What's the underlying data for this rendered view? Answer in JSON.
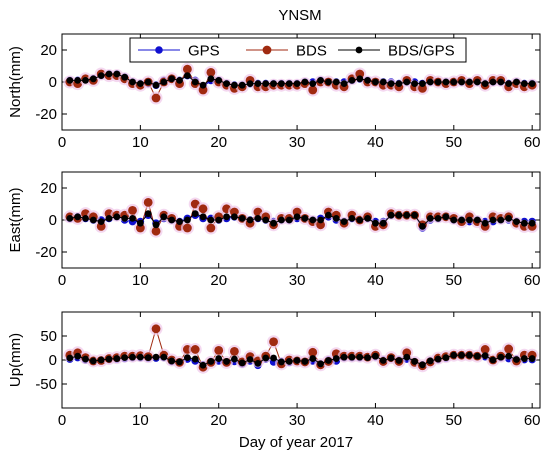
{
  "figure": {
    "title": "YNSM",
    "xlabel": "Day of year 2017"
  },
  "legend": {
    "placement": "top-center",
    "entries": [
      {
        "label": "GPS",
        "color": "#1010d0"
      },
      {
        "label": "BDS",
        "color": "#a02a10"
      },
      {
        "label": "BDS/GPS",
        "color": "#000000"
      }
    ]
  },
  "chart_data": [
    {
      "type": "line",
      "ylabel": "North(mm)",
      "xlim": [
        0,
        61
      ],
      "ylim": [
        -30,
        30
      ],
      "xticks": [
        0,
        10,
        20,
        30,
        40,
        50,
        60
      ],
      "yticks": [
        -20,
        0,
        20
      ],
      "x": [
        1,
        2,
        3,
        4,
        5,
        6,
        7,
        8,
        9,
        10,
        11,
        12,
        13,
        14,
        15,
        16,
        17,
        18,
        19,
        20,
        21,
        22,
        23,
        24,
        25,
        26,
        27,
        28,
        29,
        30,
        31,
        32,
        33,
        34,
        35,
        36,
        37,
        38,
        39,
        40,
        41,
        42,
        43,
        44,
        45,
        46,
        47,
        48,
        49,
        50,
        51,
        52,
        53,
        54,
        55,
        56,
        57,
        58,
        59,
        60
      ],
      "series": [
        {
          "name": "GPS",
          "color": "#1010d0",
          "values": [
            1,
            1,
            2,
            2,
            4,
            5,
            5,
            3,
            0,
            -1,
            -1,
            -2,
            1,
            2,
            1,
            4,
            1,
            -3,
            1,
            1,
            -1,
            -2,
            -2,
            -1,
            -1,
            -1,
            -1,
            -1,
            -1,
            -1,
            0,
            0,
            1,
            0,
            0,
            0,
            1,
            2,
            1,
            0,
            0,
            0,
            -1,
            0,
            0,
            -1,
            0,
            0,
            0,
            0,
            0,
            0,
            0,
            -1,
            0,
            0,
            -1,
            0,
            -1,
            -1
          ]
        },
        {
          "name": "BDS",
          "color": "#a02a10",
          "values": [
            0,
            -1,
            2,
            1,
            5,
            4,
            4,
            2,
            -1,
            -2,
            0,
            -10,
            0,
            2,
            -1,
            8,
            -1,
            -5,
            6,
            0,
            -2,
            -4,
            -3,
            1,
            -3,
            -3,
            -2,
            -2,
            -2,
            -2,
            -1,
            -5,
            0,
            0,
            -2,
            -3,
            2,
            5,
            0,
            0,
            -2,
            -2,
            -3,
            1,
            -3,
            -4,
            1,
            0,
            -1,
            0,
            1,
            -1,
            1,
            -2,
            1,
            1,
            -3,
            -1,
            -3,
            -2
          ]
        },
        {
          "name": "BDS/GPS",
          "color": "#000000",
          "values": [
            1,
            1,
            1,
            2,
            4,
            5,
            5,
            3,
            0,
            -1,
            0,
            -2,
            0,
            2,
            1,
            4,
            0,
            -2,
            2,
            1,
            -1,
            -2,
            -2,
            -1,
            -1,
            -1,
            -1,
            -1,
            -1,
            -1,
            0,
            -1,
            1,
            0,
            0,
            -1,
            1,
            2,
            1,
            0,
            0,
            -1,
            -1,
            0,
            -1,
            -1,
            0,
            0,
            0,
            0,
            0,
            0,
            0,
            -1,
            0,
            0,
            -1,
            0,
            -1,
            -1
          ]
        }
      ]
    },
    {
      "type": "line",
      "ylabel": "East(mm)",
      "xlim": [
        0,
        61
      ],
      "ylim": [
        -30,
        30
      ],
      "xticks": [
        0,
        10,
        20,
        30,
        40,
        50,
        60
      ],
      "yticks": [
        -20,
        0,
        20
      ],
      "x": [
        1,
        2,
        3,
        4,
        5,
        6,
        7,
        8,
        9,
        10,
        11,
        12,
        13,
        14,
        15,
        16,
        17,
        18,
        19,
        20,
        21,
        22,
        23,
        24,
        25,
        26,
        27,
        28,
        29,
        30,
        31,
        32,
        33,
        34,
        35,
        36,
        37,
        38,
        39,
        40,
        41,
        42,
        43,
        44,
        45,
        46,
        47,
        48,
        49,
        50,
        51,
        52,
        53,
        54,
        55,
        56,
        57,
        58,
        59,
        60
      ],
      "series": [
        {
          "name": "GPS",
          "color": "#1010d0",
          "values": [
            1,
            2,
            1,
            0,
            0,
            1,
            2,
            0,
            -1,
            -1,
            3,
            -2,
            1,
            0,
            -1,
            1,
            3,
            1,
            1,
            0,
            1,
            2,
            1,
            0,
            1,
            0,
            -1,
            0,
            0,
            1,
            1,
            0,
            1,
            2,
            0,
            -1,
            1,
            0,
            1,
            -1,
            -1,
            3,
            3,
            3,
            3,
            -5,
            0,
            1,
            2,
            0,
            0,
            -1,
            0,
            -1,
            -1,
            0,
            0,
            -1,
            -1,
            -1
          ]
        },
        {
          "name": "BDS",
          "color": "#a02a10",
          "values": [
            2,
            1,
            4,
            2,
            -4,
            4,
            3,
            3,
            6,
            -5,
            11,
            -7,
            3,
            1,
            -4,
            -5,
            10,
            7,
            -5,
            2,
            7,
            5,
            1,
            -2,
            5,
            2,
            -3,
            1,
            1,
            5,
            1,
            -1,
            -3,
            5,
            3,
            -2,
            3,
            0,
            2,
            -4,
            -3,
            4,
            3,
            3,
            3,
            -3,
            2,
            2,
            2,
            1,
            -1,
            2,
            -1,
            -4,
            2,
            1,
            2,
            -2,
            -4,
            -4
          ]
        },
        {
          "name": "BDS/GPS",
          "color": "#000000",
          "values": [
            1,
            2,
            1,
            0,
            -1,
            1,
            2,
            1,
            1,
            -2,
            4,
            -3,
            2,
            0,
            -1,
            0,
            4,
            2,
            0,
            0,
            2,
            2,
            1,
            0,
            1,
            0,
            -2,
            0,
            0,
            2,
            1,
            0,
            0,
            3,
            1,
            -1,
            1,
            0,
            1,
            -2,
            -2,
            3,
            3,
            3,
            3,
            -4,
            1,
            1,
            2,
            0,
            0,
            0,
            0,
            -2,
            0,
            0,
            1,
            -1,
            -2,
            -2
          ]
        }
      ]
    },
    {
      "type": "line",
      "ylabel": "Up(mm)",
      "xlim": [
        0,
        61
      ],
      "ylim": [
        -100,
        100
      ],
      "xticks": [
        0,
        10,
        20,
        30,
        40,
        50,
        60
      ],
      "yticks": [
        -50,
        0,
        50
      ],
      "x": [
        1,
        2,
        3,
        4,
        5,
        6,
        7,
        8,
        9,
        10,
        11,
        12,
        13,
        14,
        15,
        16,
        17,
        18,
        19,
        20,
        21,
        22,
        23,
        24,
        25,
        26,
        27,
        28,
        29,
        30,
        31,
        32,
        33,
        34,
        35,
        36,
        37,
        38,
        39,
        40,
        41,
        42,
        43,
        44,
        45,
        46,
        47,
        48,
        49,
        50,
        51,
        52,
        53,
        54,
        55,
        56,
        57,
        58,
        59,
        60
      ],
      "series": [
        {
          "name": "GPS",
          "color": "#1010d0",
          "values": [
            2,
            5,
            0,
            -2,
            0,
            1,
            2,
            3,
            5,
            5,
            4,
            4,
            5,
            -3,
            -4,
            2,
            -2,
            -10,
            -3,
            -2,
            -5,
            -3,
            -8,
            -2,
            -11,
            2,
            -4,
            -3,
            -5,
            -1,
            -3,
            -2,
            -8,
            0,
            -2,
            5,
            5,
            5,
            5,
            7,
            0,
            3,
            0,
            2,
            -3,
            -10,
            -2,
            1,
            4,
            9,
            10,
            9,
            8,
            7,
            0,
            5,
            3,
            2,
            1,
            1
          ]
        },
        {
          "name": "BDS",
          "color": "#a02a10",
          "values": [
            10,
            15,
            5,
            -2,
            -1,
            3,
            5,
            8,
            8,
            9,
            7,
            65,
            10,
            0,
            -5,
            22,
            22,
            -15,
            -5,
            20,
            -5,
            18,
            -4,
            7,
            -2,
            8,
            38,
            -8,
            0,
            -2,
            -4,
            16,
            -10,
            -3,
            13,
            8,
            8,
            8,
            6,
            10,
            -3,
            5,
            -3,
            15,
            -5,
            -12,
            -4,
            4,
            7,
            10,
            10,
            10,
            8,
            22,
            0,
            8,
            23,
            -2,
            10,
            10
          ]
        },
        {
          "name": "BDS/GPS",
          "color": "#000000",
          "values": [
            4,
            8,
            2,
            -2,
            0,
            2,
            3,
            5,
            6,
            6,
            5,
            6,
            6,
            -2,
            -4,
            5,
            2,
            -11,
            -3,
            3,
            -3,
            2,
            -6,
            1,
            -7,
            4,
            4,
            -4,
            -3,
            -1,
            -3,
            3,
            -8,
            -1,
            3,
            6,
            6,
            6,
            5,
            8,
            -1,
            4,
            -1,
            6,
            -3,
            -10,
            -2,
            2,
            5,
            10,
            10,
            10,
            8,
            9,
            0,
            6,
            8,
            1,
            3,
            3
          ]
        }
      ]
    }
  ]
}
